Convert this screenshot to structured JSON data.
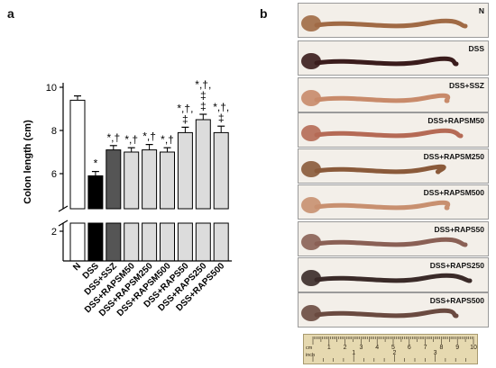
{
  "panel_a_letter": "a",
  "panel_b_letter": "b",
  "chart_data": {
    "type": "bar",
    "ylabel": "Colon length (cm)",
    "yticks": [
      "2",
      "6",
      "8",
      "10"
    ],
    "ylim": [
      5,
      10
    ],
    "axis_break": true,
    "grid": false,
    "categories": [
      "N",
      "DSS",
      "DSS+SSZ",
      "DSS+RAPSM50",
      "DSS+RAPSM250",
      "DSS+RAPSM500",
      "DSS+RAPS50",
      "DSS+RAPS250",
      "DSS+RAPS500"
    ],
    "values": [
      9.4,
      5.9,
      7.1,
      7.0,
      7.1,
      7.0,
      7.9,
      8.5,
      7.9
    ],
    "errors": [
      0.2,
      0.2,
      0.2,
      0.2,
      0.25,
      0.2,
      0.25,
      0.25,
      0.3
    ],
    "bar_colors": [
      "#ffffff",
      "#000000",
      "#555555",
      "#dcdcdc",
      "#dcdcdc",
      "#dcdcdc",
      "#dcdcdc",
      "#dcdcdc",
      "#dcdcdc"
    ],
    "significance": [
      [],
      [
        "*"
      ],
      [
        "*,†"
      ],
      [
        "*,†"
      ],
      [
        "*,†"
      ],
      [
        "*,†"
      ],
      [
        "‡",
        "*,†,"
      ],
      [
        "‡",
        "‡",
        "*,†,"
      ],
      [
        "‡",
        "*,†,"
      ]
    ]
  },
  "photo_panel": {
    "labels": [
      "N",
      "DSS",
      "DSS+SSZ",
      "DSS+RAPSM50",
      "DSS+RAPSM250",
      "DSS+RAPSM500",
      "DSS+RAPS50",
      "DSS+RAPS250",
      "DSS+RAPS500"
    ],
    "tissue_colors": [
      "#a06a45",
      "#3a1c1c",
      "#c88a6a",
      "#b56a55",
      "#8a5a3a",
      "#c89070",
      "#8a6055",
      "#3a2a28",
      "#6a4a40"
    ],
    "ruler": {
      "inch_label": "inch",
      "cm_label": "cm",
      "inch_numbers": [
        "1",
        "2",
        "3"
      ],
      "cm_numbers": [
        "1",
        "2",
        "3",
        "4",
        "5",
        "6",
        "7",
        "8",
        "9",
        "10"
      ]
    }
  }
}
